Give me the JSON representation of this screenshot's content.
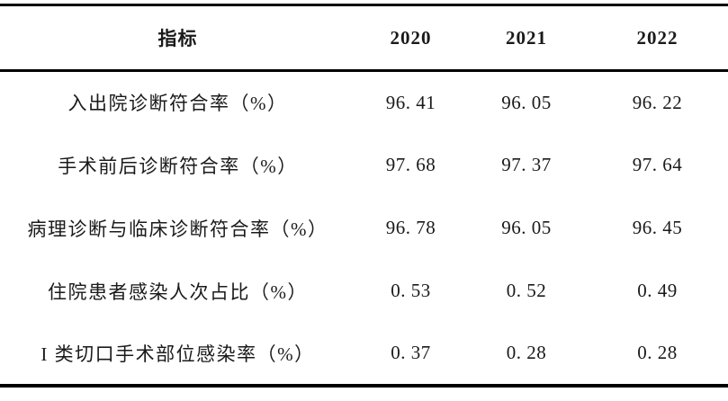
{
  "table": {
    "columns": [
      {
        "label": "指标"
      },
      {
        "label": "2020"
      },
      {
        "label": "2021"
      },
      {
        "label": "2022"
      }
    ],
    "rows": [
      {
        "label": "入出院诊断符合率（%）",
        "values": [
          "96. 41",
          "96. 05",
          "96. 22"
        ]
      },
      {
        "label": "手术前后诊断符合率（%）",
        "values": [
          "97. 68",
          "97. 37",
          "97. 64"
        ]
      },
      {
        "label": "病理诊断与临床诊断符合率（%）",
        "values": [
          "96. 78",
          "96. 05",
          "96. 45"
        ]
      },
      {
        "label": "住院患者感染人次占比（%）",
        "values": [
          "0. 53",
          "0. 52",
          "0. 49"
        ]
      },
      {
        "label": "I 类切口手术部位感染率（%）",
        "values": [
          "0. 37",
          "0. 28",
          "0. 28"
        ]
      }
    ]
  },
  "colors": {
    "text": "#1a1a1a",
    "rule": "#000000",
    "background": "#ffffff"
  }
}
